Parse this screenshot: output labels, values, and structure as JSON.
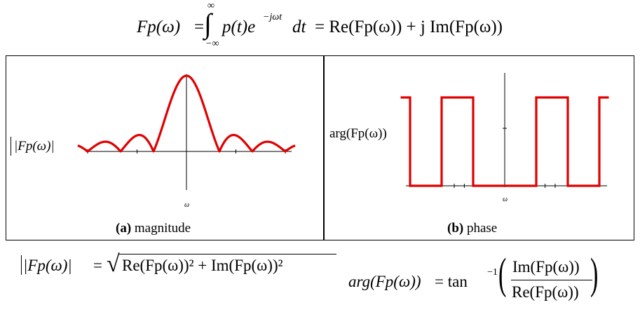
{
  "equations": {
    "fourier": {
      "lhs": "Fp(ω)",
      "upper_limit": "∞",
      "lower_limit": "−∞",
      "integrand": "p(t)e",
      "exponent": "−jωt",
      "dt": "dt",
      "rhs": "= Re(Fp(ω)) + j Im(Fp(ω))"
    },
    "magnitude": {
      "lhs": "|Fp(ω)|",
      "rhs_prefix": "=",
      "radicand": "Re(Fp(ω))² + Im(Fp(ω))²"
    },
    "phase": {
      "lhs": "arg(Fp(ω))",
      "rhs_prefix": "= tan",
      "inverse": "−1",
      "numerator": "Im(Fp(ω))",
      "denominator": "Re(Fp(ω))"
    }
  },
  "panels": {
    "magnitude": {
      "y_label": "|Fp(ω)|",
      "x_label": "ω",
      "caption_bold": "(a)",
      "caption_text": " magnitude"
    },
    "phase": {
      "y_label": "arg(Fp(ω))",
      "x_label": "ω",
      "caption_bold": "(b)",
      "caption_text": " phase"
    }
  },
  "chart_data": [
    {
      "type": "line",
      "function": "|sinc(ω)|",
      "x_range": [
        -3.3,
        3.3
      ],
      "y_range": [
        0,
        1
      ],
      "peak": 1.0,
      "zeros": [
        -3,
        -2,
        -1,
        1,
        2,
        3
      ],
      "color": "#e00000"
    },
    {
      "type": "line",
      "function": "arg(sinc(ω)) — square wave",
      "x_range": [
        -3.3,
        3.3
      ],
      "levels": [
        "0",
        "π"
      ],
      "high_intervals": [
        [
          -3.3,
          -3
        ],
        [
          -2,
          -1
        ],
        [
          1,
          2
        ],
        [
          3,
          3.3
        ]
      ],
      "color": "#e00000"
    }
  ],
  "colors": {
    "curve": "#e00000",
    "axes": "#000000"
  }
}
